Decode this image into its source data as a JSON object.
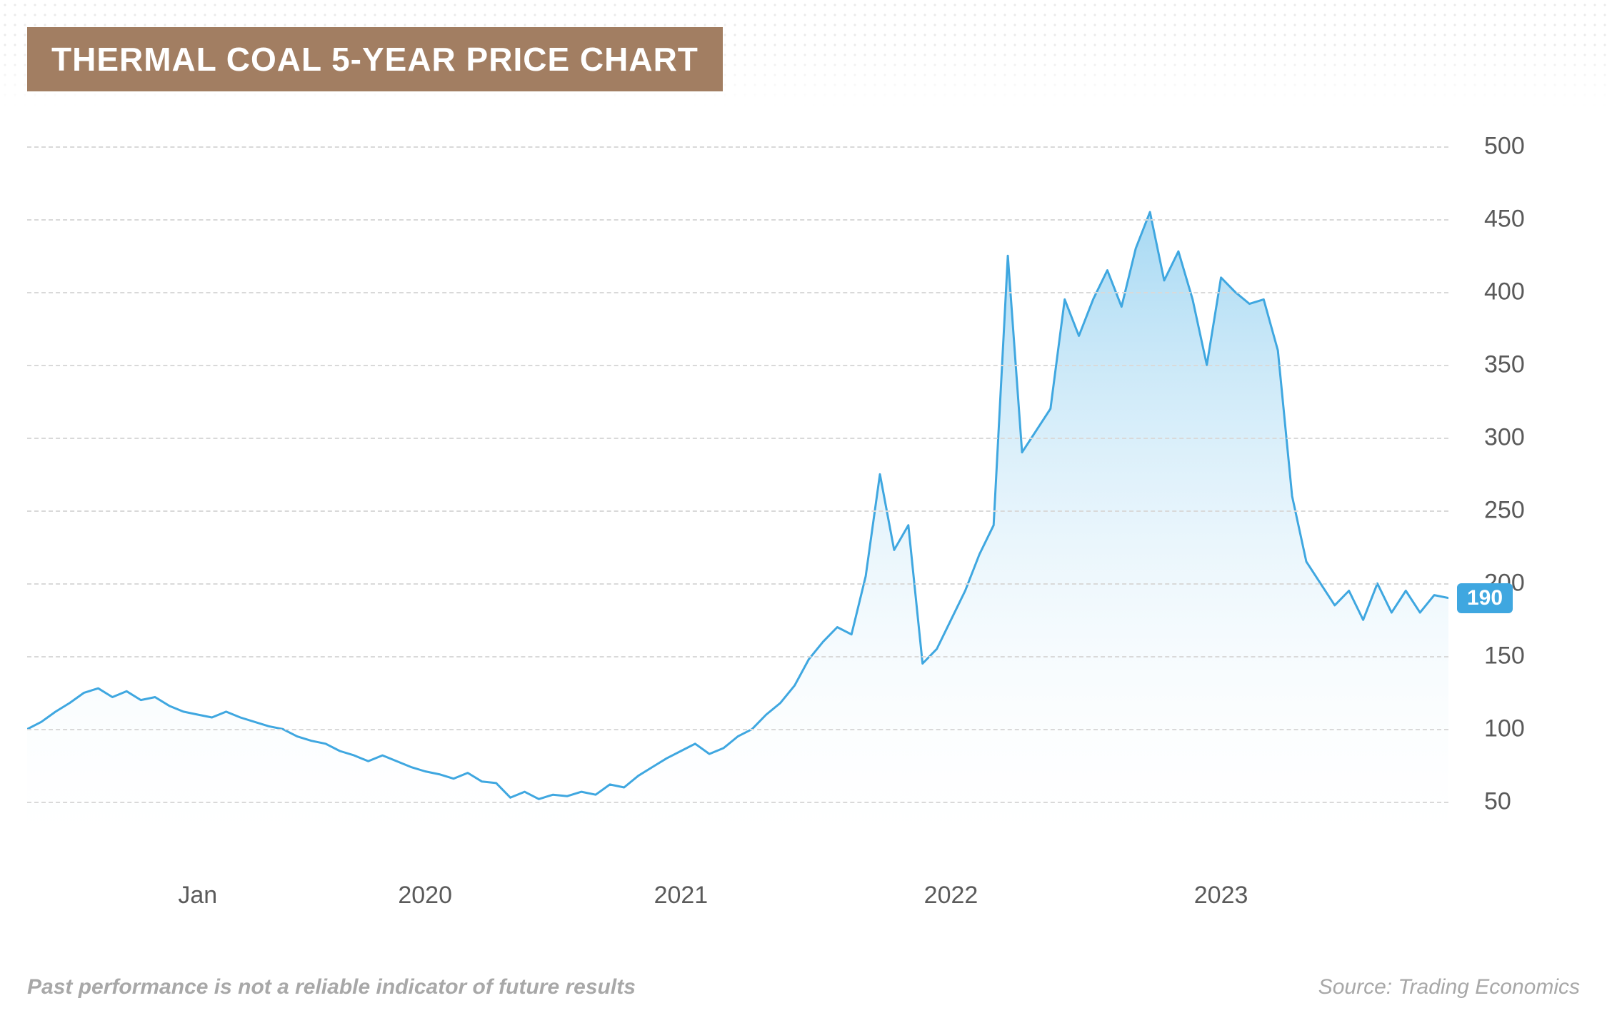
{
  "title": "THERMAL COAL 5-YEAR PRICE CHART",
  "title_bg": "#a27e62",
  "title_color": "#ffffff",
  "disclaimer": "Past performance is not a reliable indicator of future results",
  "source": "Source: Trading Economics",
  "footer_color": "#a8a8a8",
  "chart": {
    "type": "area",
    "line_color": "#3fa7e0",
    "line_width": 3,
    "fill_top": "#8ecef0",
    "fill_bottom": "#ffffff",
    "fill_opacity_top": 0.78,
    "grid_color": "#d9d9d9",
    "axis_text_color": "#5a5a5a",
    "background": "#ffffff",
    "ylim": [
      10,
      505
    ],
    "ytick_labels": [
      "50",
      "100",
      "150",
      "200",
      "250",
      "300",
      "350",
      "400",
      "450",
      "500"
    ],
    "ytick_values": [
      50,
      100,
      150,
      200,
      250,
      300,
      350,
      400,
      450,
      500
    ],
    "xlim": [
      0,
      100
    ],
    "xtick_labels": [
      "Jan",
      "2020",
      "2021",
      "2022",
      "2023"
    ],
    "xtick_positions": [
      12,
      28,
      46,
      65,
      84
    ],
    "current_value": 190,
    "current_label": "190",
    "current_badge_bg": "#3fa7e0",
    "data": [
      [
        0,
        100
      ],
      [
        1,
        105
      ],
      [
        2,
        112
      ],
      [
        3,
        118
      ],
      [
        4,
        125
      ],
      [
        5,
        128
      ],
      [
        6,
        122
      ],
      [
        7,
        126
      ],
      [
        8,
        120
      ],
      [
        9,
        122
      ],
      [
        10,
        116
      ],
      [
        11,
        112
      ],
      [
        12,
        110
      ],
      [
        13,
        108
      ],
      [
        14,
        112
      ],
      [
        15,
        108
      ],
      [
        16,
        105
      ],
      [
        17,
        102
      ],
      [
        18,
        100
      ],
      [
        19,
        95
      ],
      [
        20,
        92
      ],
      [
        21,
        90
      ],
      [
        22,
        85
      ],
      [
        23,
        82
      ],
      [
        24,
        78
      ],
      [
        25,
        82
      ],
      [
        26,
        78
      ],
      [
        27,
        74
      ],
      [
        28,
        71
      ],
      [
        29,
        69
      ],
      [
        30,
        66
      ],
      [
        31,
        70
      ],
      [
        32,
        64
      ],
      [
        33,
        63
      ],
      [
        34,
        53
      ],
      [
        35,
        57
      ],
      [
        36,
        52
      ],
      [
        37,
        55
      ],
      [
        38,
        54
      ],
      [
        39,
        57
      ],
      [
        40,
        55
      ],
      [
        41,
        62
      ],
      [
        42,
        60
      ],
      [
        43,
        68
      ],
      [
        44,
        74
      ],
      [
        45,
        80
      ],
      [
        46,
        85
      ],
      [
        47,
        90
      ],
      [
        48,
        83
      ],
      [
        49,
        87
      ],
      [
        50,
        95
      ],
      [
        51,
        100
      ],
      [
        52,
        110
      ],
      [
        53,
        118
      ],
      [
        54,
        130
      ],
      [
        55,
        148
      ],
      [
        56,
        160
      ],
      [
        57,
        170
      ],
      [
        58,
        165
      ],
      [
        59,
        205
      ],
      [
        60,
        275
      ],
      [
        61,
        223
      ],
      [
        62,
        240
      ],
      [
        63,
        145
      ],
      [
        64,
        155
      ],
      [
        65,
        175
      ],
      [
        66,
        195
      ],
      [
        67,
        220
      ],
      [
        68,
        240
      ],
      [
        69,
        425
      ],
      [
        70,
        290
      ],
      [
        71,
        305
      ],
      [
        72,
        320
      ],
      [
        73,
        395
      ],
      [
        74,
        370
      ],
      [
        75,
        395
      ],
      [
        76,
        415
      ],
      [
        77,
        390
      ],
      [
        78,
        430
      ],
      [
        79,
        455
      ],
      [
        80,
        408
      ],
      [
        81,
        428
      ],
      [
        82,
        395
      ],
      [
        83,
        350
      ],
      [
        84,
        410
      ],
      [
        85,
        400
      ],
      [
        86,
        392
      ],
      [
        87,
        395
      ],
      [
        88,
        360
      ],
      [
        89,
        260
      ],
      [
        90,
        215
      ],
      [
        91,
        200
      ],
      [
        92,
        185
      ],
      [
        93,
        195
      ],
      [
        94,
        175
      ],
      [
        95,
        200
      ],
      [
        96,
        180
      ],
      [
        97,
        195
      ],
      [
        98,
        180
      ],
      [
        99,
        192
      ],
      [
        100,
        190
      ]
    ]
  }
}
